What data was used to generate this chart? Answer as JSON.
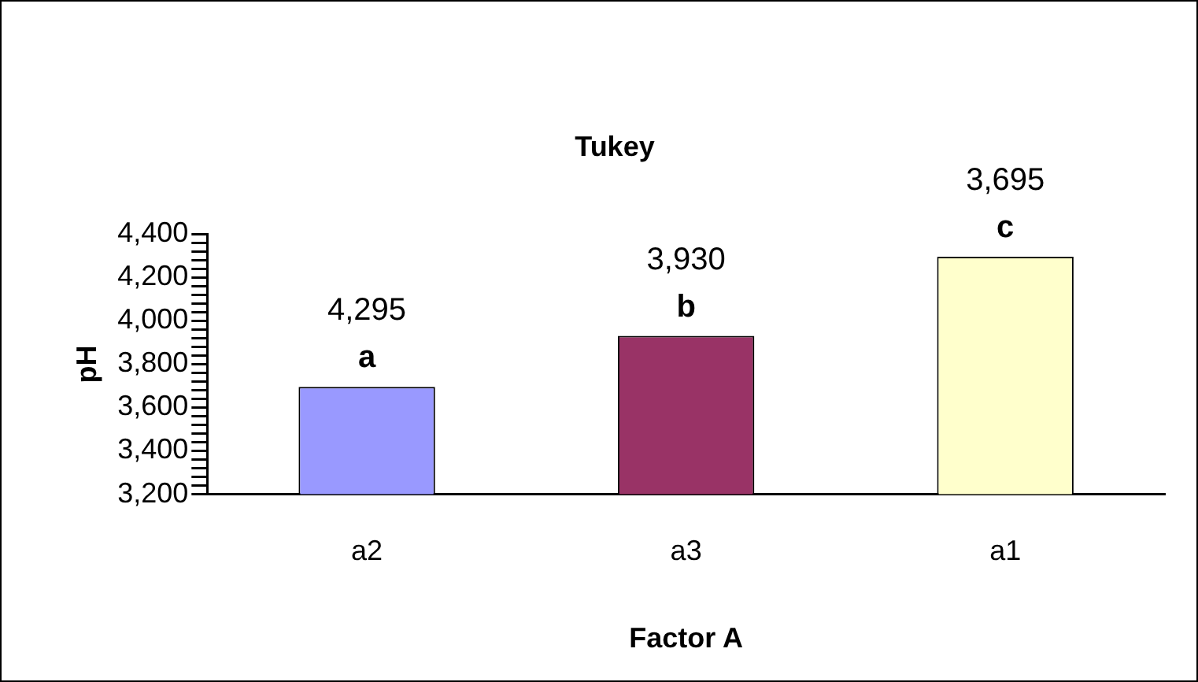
{
  "chart_data": {
    "type": "bar",
    "title": "Tukey",
    "xlabel": "Factor A",
    "ylabel": "pH",
    "categories": [
      "a2",
      "a3",
      "a1"
    ],
    "values": [
      3695,
      3930,
      4295
    ],
    "colors": [
      "#9999ff",
      "#993366",
      "#ffffcc"
    ],
    "ylim": [
      3200,
      4400
    ],
    "yticks": [
      {
        "value": 3200,
        "label": "3,200"
      },
      {
        "value": 3240,
        "label": null
      },
      {
        "value": 3280,
        "label": null
      },
      {
        "value": 3320,
        "label": null
      },
      {
        "value": 3360,
        "label": null
      },
      {
        "value": 3400,
        "label": "3,400"
      },
      {
        "value": 3440,
        "label": null
      },
      {
        "value": 3480,
        "label": null
      },
      {
        "value": 3520,
        "label": null
      },
      {
        "value": 3560,
        "label": null
      },
      {
        "value": 3600,
        "label": "3,600"
      },
      {
        "value": 3640,
        "label": null
      },
      {
        "value": 3680,
        "label": null
      },
      {
        "value": 3720,
        "label": null
      },
      {
        "value": 3760,
        "label": null
      },
      {
        "value": 3800,
        "label": "3,800"
      },
      {
        "value": 3840,
        "label": null
      },
      {
        "value": 3880,
        "label": null
      },
      {
        "value": 3920,
        "label": null
      },
      {
        "value": 3960,
        "label": null
      },
      {
        "value": 4000,
        "label": "4,000"
      },
      {
        "value": 4040,
        "label": null
      },
      {
        "value": 4080,
        "label": null
      },
      {
        "value": 4120,
        "label": null
      },
      {
        "value": 4160,
        "label": null
      },
      {
        "value": 4200,
        "label": "4,200"
      },
      {
        "value": 4240,
        "label": null
      },
      {
        "value": 4280,
        "label": null
      },
      {
        "value": 4320,
        "label": null
      },
      {
        "value": 4360,
        "label": null
      },
      {
        "value": 4400,
        "label": "4,400"
      }
    ],
    "annotations": [
      {
        "text": "4,295",
        "x": "a2",
        "y": 3695
      },
      {
        "text": "a",
        "x": "a2",
        "y": 3695
      },
      {
        "text": "3,930",
        "x": "a3",
        "y": 3930
      },
      {
        "text": "b",
        "x": "a3",
        "y": 3930
      },
      {
        "text": "3,695",
        "x": "a1",
        "y": 4295
      },
      {
        "text": "c",
        "x": "a1",
        "y": 4295
      }
    ],
    "grid": false,
    "legend": false
  }
}
